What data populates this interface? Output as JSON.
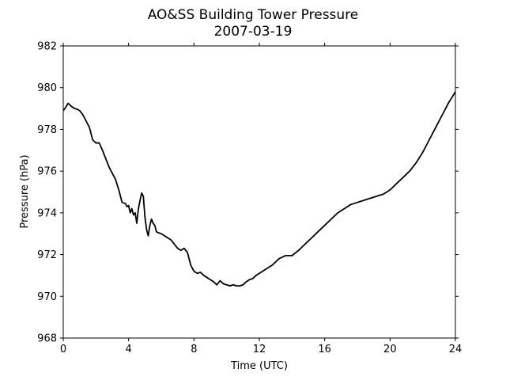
{
  "chart_data": {
    "type": "line",
    "title": "AO&SS Building Tower Pressure",
    "subtitle": "2007-03-19",
    "xlabel": "Time (UTC)",
    "ylabel": "Pressure (hPa)",
    "xlim": [
      0,
      24
    ],
    "ylim": [
      968,
      982
    ],
    "xticks": [
      0,
      4,
      8,
      12,
      16,
      20,
      24
    ],
    "yticks": [
      968,
      970,
      972,
      974,
      976,
      978,
      980,
      982
    ],
    "grid": false,
    "legend": "none",
    "series": [
      {
        "color": "#000000",
        "x": [
          0.0,
          0.1,
          0.3,
          0.5,
          0.7,
          0.9,
          1.0,
          1.2,
          1.4,
          1.6,
          1.8,
          2.0,
          2.2,
          2.4,
          2.6,
          2.8,
          3.0,
          3.2,
          3.4,
          3.6,
          3.8,
          3.9,
          4.0,
          4.1,
          4.2,
          4.3,
          4.4,
          4.5,
          4.6,
          4.7,
          4.8,
          4.9,
          5.0,
          5.1,
          5.2,
          5.3,
          5.4,
          5.5,
          5.6,
          5.7,
          5.8,
          6.0,
          6.2,
          6.4,
          6.6,
          6.8,
          7.0,
          7.2,
          7.4,
          7.6,
          7.8,
          8.0,
          8.2,
          8.4,
          8.6,
          8.8,
          9.0,
          9.2,
          9.4,
          9.6,
          9.8,
          10.0,
          10.2,
          10.4,
          10.6,
          10.8,
          11.0,
          11.2,
          11.4,
          11.6,
          11.8,
          12.0,
          12.4,
          12.8,
          13.2,
          13.6,
          14.0,
          14.4,
          14.8,
          15.2,
          15.6,
          16.0,
          16.4,
          16.8,
          17.2,
          17.6,
          18.0,
          18.4,
          18.8,
          19.2,
          19.6,
          20.0,
          20.4,
          20.8,
          21.2,
          21.6,
          22.0,
          22.4,
          22.8,
          23.2,
          23.6,
          24.0
        ],
        "y": [
          978.9,
          979.0,
          979.25,
          979.1,
          979.0,
          978.95,
          978.9,
          978.7,
          978.4,
          978.1,
          977.5,
          977.35,
          977.35,
          977.0,
          976.6,
          976.2,
          975.9,
          975.6,
          975.1,
          974.5,
          974.45,
          974.3,
          974.35,
          974.0,
          974.2,
          973.9,
          974.0,
          973.5,
          974.2,
          974.6,
          974.95,
          974.8,
          973.8,
          973.2,
          972.9,
          973.4,
          973.7,
          973.5,
          973.4,
          973.1,
          973.05,
          973.0,
          972.9,
          972.8,
          972.7,
          972.5,
          972.3,
          972.2,
          972.3,
          972.1,
          971.5,
          971.2,
          971.1,
          971.15,
          971.0,
          970.9,
          970.8,
          970.7,
          970.55,
          970.75,
          970.6,
          970.55,
          970.5,
          970.55,
          970.5,
          970.5,
          970.55,
          970.7,
          970.8,
          970.85,
          971.0,
          971.1,
          971.3,
          971.5,
          971.8,
          971.95,
          971.95,
          972.2,
          972.5,
          972.8,
          973.1,
          973.4,
          973.7,
          974.0,
          974.2,
          974.4,
          974.5,
          974.6,
          974.7,
          974.8,
          974.9,
          975.1,
          975.4,
          975.7,
          976.0,
          976.4,
          976.9,
          977.5,
          978.1,
          978.7,
          979.3,
          979.8
        ]
      }
    ]
  }
}
